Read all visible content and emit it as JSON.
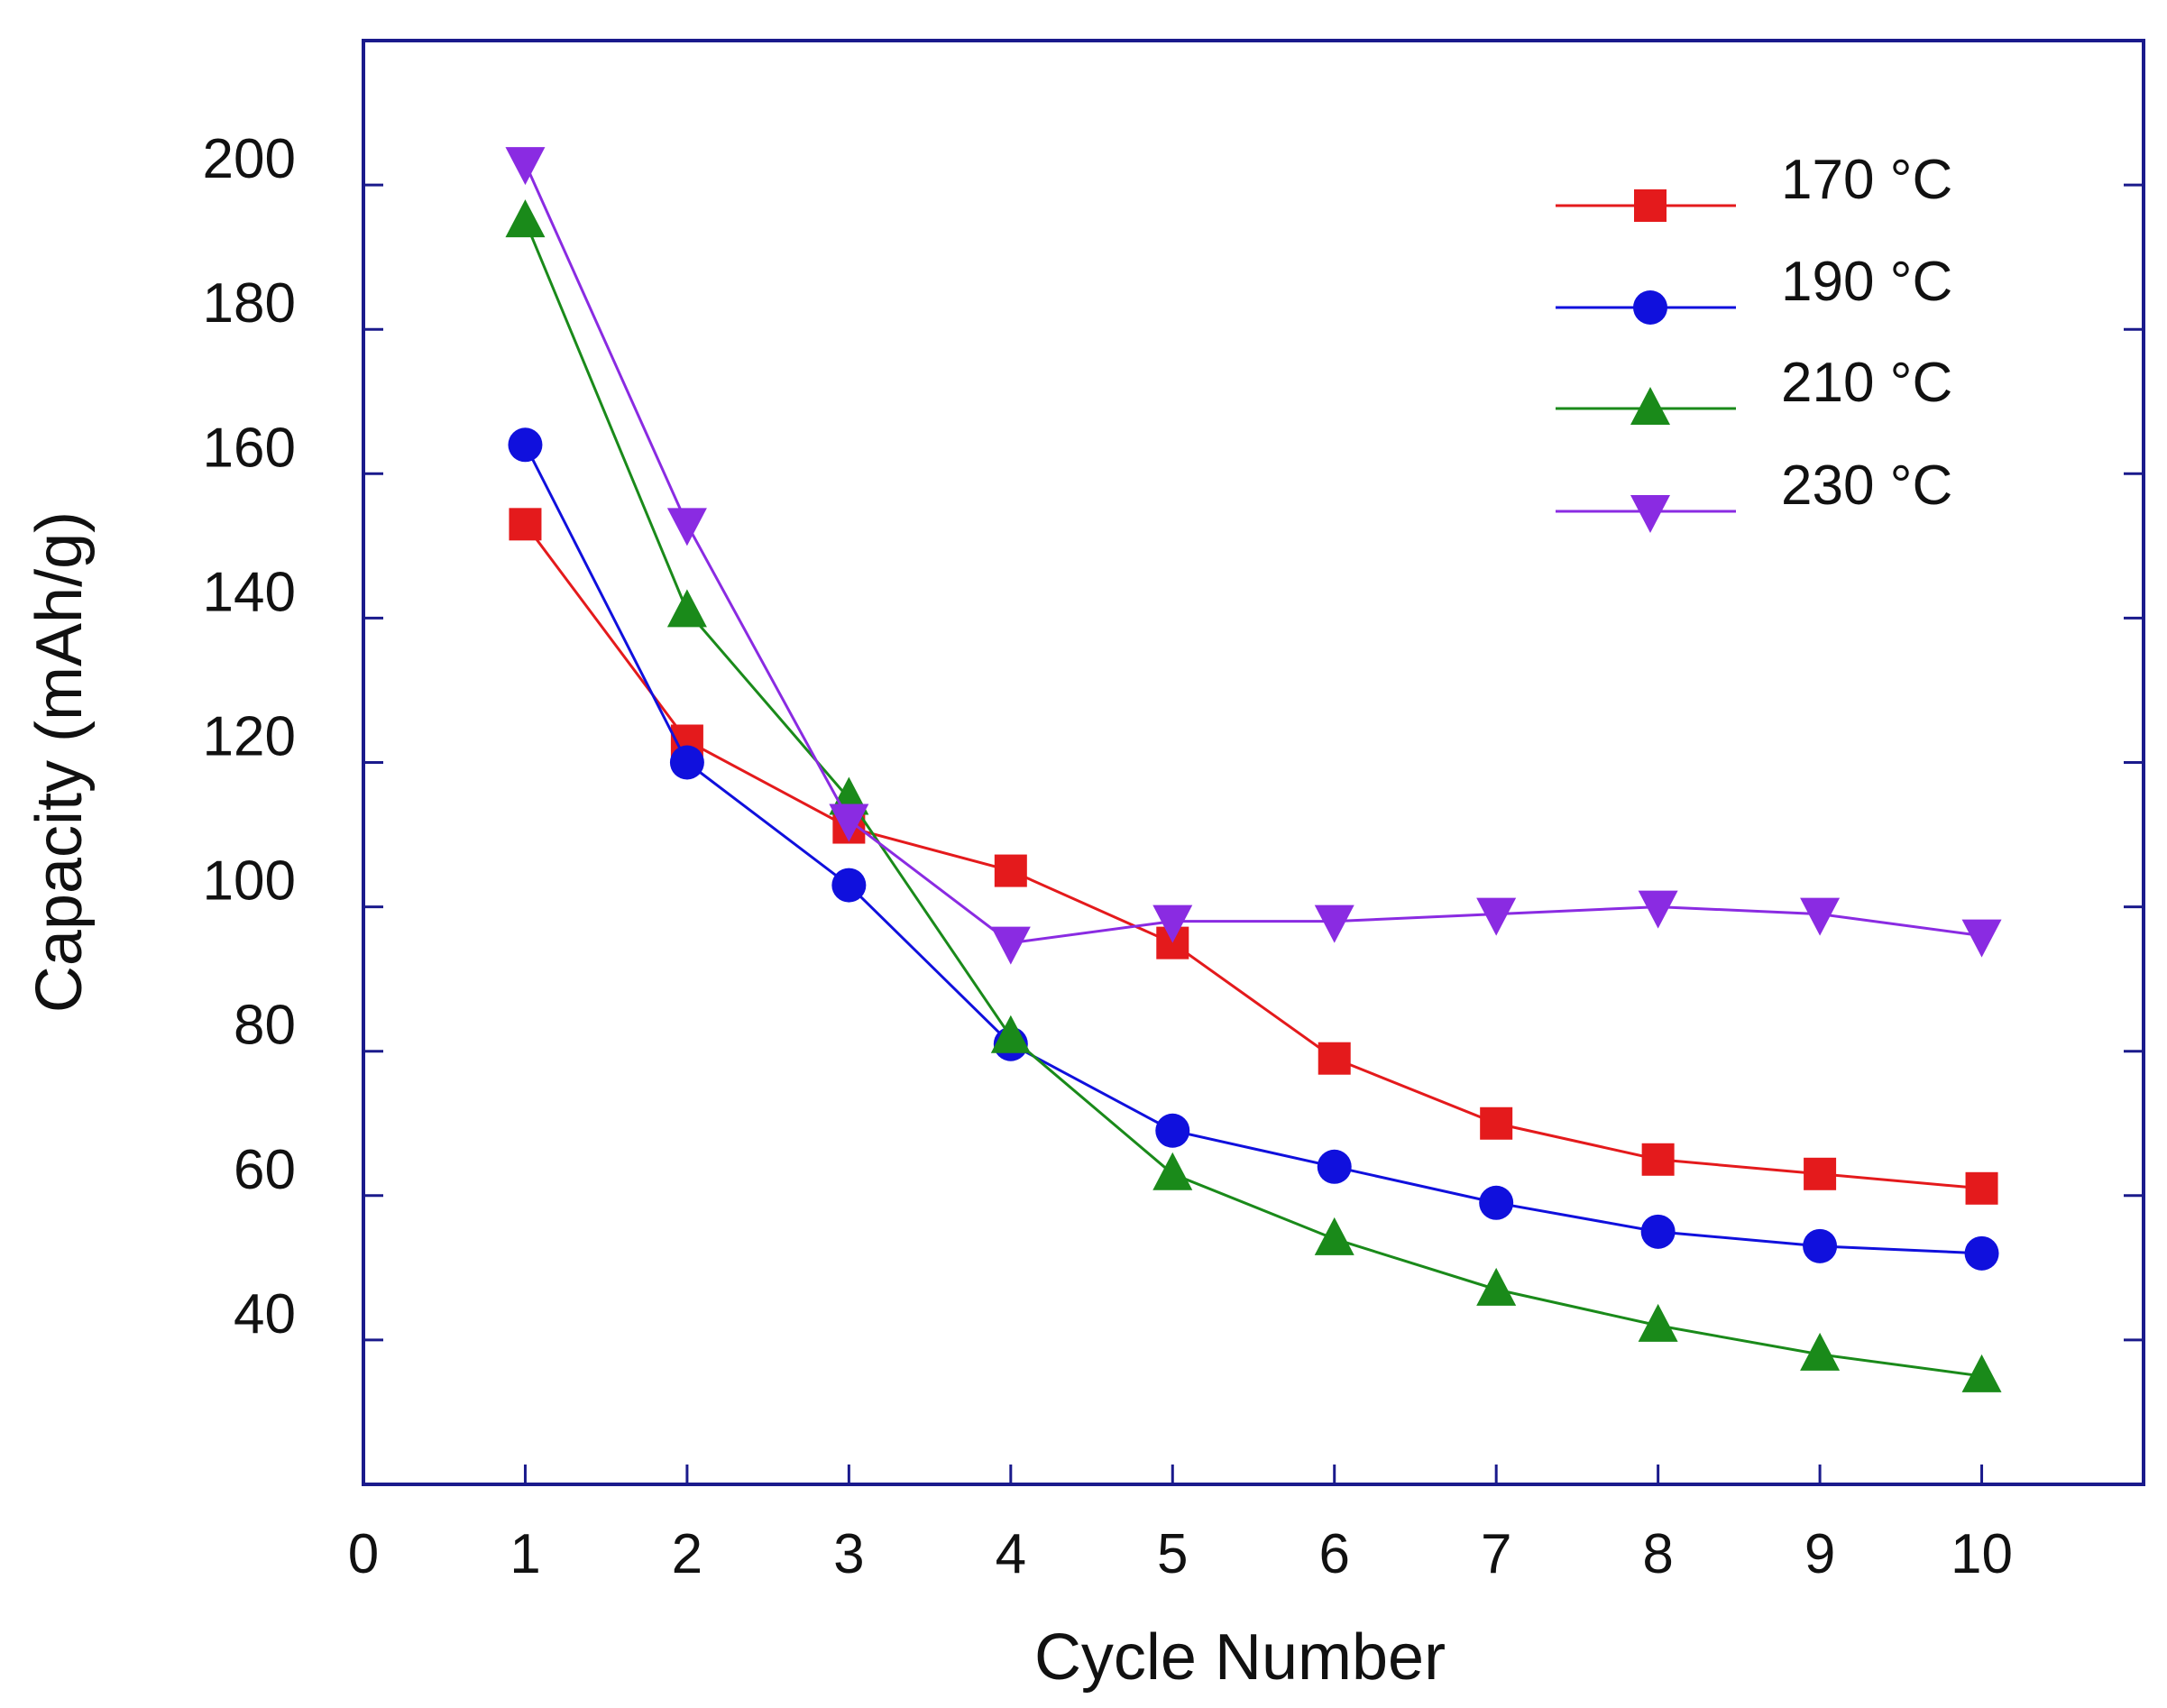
{
  "chart_data": {
    "type": "line",
    "title": "",
    "xlabel": "Cycle Number",
    "ylabel": "Capacity (mAh/g)",
    "xlim": [
      0,
      11
    ],
    "ylim": [
      20,
      220
    ],
    "x_ticks": [
      0,
      1,
      2,
      3,
      4,
      5,
      6,
      7,
      8,
      9,
      10
    ],
    "y_ticks": [
      40,
      60,
      80,
      100,
      120,
      140,
      160,
      180,
      200
    ],
    "grid": false,
    "legend_position": "top-right",
    "x": [
      1,
      2,
      3,
      4,
      5,
      6,
      7,
      8,
      9,
      10
    ],
    "series": [
      {
        "name": "170 °C",
        "color": "#e41a1c",
        "marker": "square",
        "values": [
          153,
          123,
          111,
          105,
          95,
          79,
          70,
          65,
          63,
          61
        ]
      },
      {
        "name": "190 °C",
        "color": "#1010dd",
        "marker": "circle",
        "values": [
          164,
          120,
          103,
          81,
          69,
          64,
          59,
          55,
          53,
          52
        ]
      },
      {
        "name": "210 °C",
        "color": "#1a8a1a",
        "marker": "triangle-up",
        "values": [
          195,
          141,
          115,
          82,
          63,
          54,
          47,
          42,
          38,
          35
        ]
      },
      {
        "name": "230 °C",
        "color": "#8a2be2",
        "marker": "triangle-down",
        "values": [
          203,
          153,
          112,
          95,
          98,
          98,
          99,
          100,
          99,
          96
        ]
      }
    ]
  },
  "axis_colors": {
    "frame": "#1a1a8c"
  }
}
